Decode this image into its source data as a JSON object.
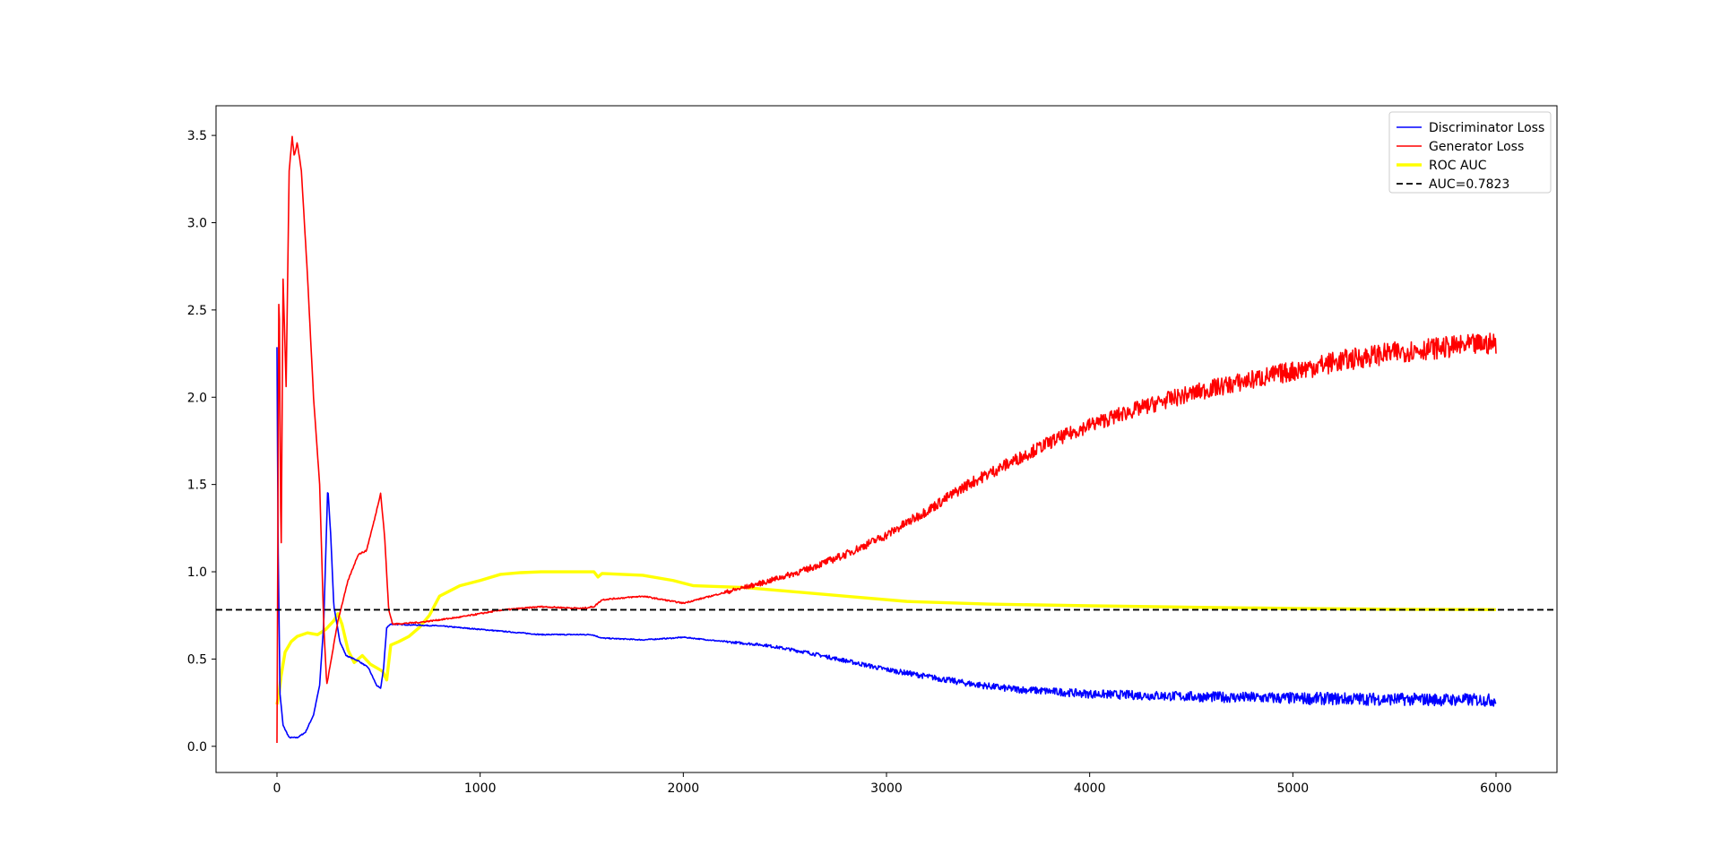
{
  "chart_data": {
    "type": "line",
    "title": "",
    "xlabel": "",
    "ylabel": "",
    "xlim": [
      -300,
      6300
    ],
    "ylim": [
      -0.15,
      3.67
    ],
    "x_ticks": [
      0,
      1000,
      2000,
      3000,
      4000,
      5000,
      6000
    ],
    "y_ticks": [
      0.0,
      0.5,
      1.0,
      1.5,
      2.0,
      2.5,
      3.0,
      3.5
    ],
    "x_tick_labels": [
      "0",
      "1000",
      "2000",
      "3000",
      "4000",
      "5000",
      "6000"
    ],
    "y_tick_labels": [
      "0.0",
      "0.5",
      "1.0",
      "1.5",
      "2.0",
      "2.5",
      "3.0",
      "3.5"
    ],
    "grid": false,
    "legend_position": "top-right",
    "series": [
      {
        "name": "Discriminator Loss",
        "color": "#0000ff",
        "style": "solid",
        "noisy": true,
        "points": [
          [
            0,
            2.29
          ],
          [
            5,
            1.2
          ],
          [
            15,
            0.3
          ],
          [
            30,
            0.12
          ],
          [
            60,
            0.05
          ],
          [
            100,
            0.05
          ],
          [
            140,
            0.08
          ],
          [
            180,
            0.18
          ],
          [
            210,
            0.35
          ],
          [
            230,
            0.7
          ],
          [
            250,
            1.49
          ],
          [
            265,
            1.2
          ],
          [
            280,
            0.8
          ],
          [
            310,
            0.6
          ],
          [
            340,
            0.52
          ],
          [
            400,
            0.49
          ],
          [
            450,
            0.45
          ],
          [
            490,
            0.35
          ],
          [
            510,
            0.33
          ],
          [
            525,
            0.45
          ],
          [
            540,
            0.68
          ],
          [
            560,
            0.7
          ],
          [
            800,
            0.69
          ],
          [
            1000,
            0.67
          ],
          [
            1300,
            0.64
          ],
          [
            1550,
            0.64
          ],
          [
            1600,
            0.62
          ],
          [
            1800,
            0.61
          ],
          [
            1950,
            0.62
          ],
          [
            2000,
            0.625
          ],
          [
            2200,
            0.6
          ],
          [
            2400,
            0.58
          ],
          [
            2600,
            0.54
          ],
          [
            2800,
            0.49
          ],
          [
            3000,
            0.44
          ],
          [
            3200,
            0.4
          ],
          [
            3400,
            0.36
          ],
          [
            3600,
            0.33
          ],
          [
            3800,
            0.315
          ],
          [
            4000,
            0.3
          ],
          [
            4500,
            0.285
          ],
          [
            5000,
            0.275
          ],
          [
            5500,
            0.27
          ],
          [
            6000,
            0.265
          ]
        ]
      },
      {
        "name": "Generator Loss",
        "color": "#ff0000",
        "style": "solid",
        "noisy": true,
        "points": [
          [
            0,
            0.02
          ],
          [
            10,
            2.81
          ],
          [
            20,
            1.0
          ],
          [
            30,
            2.68
          ],
          [
            45,
            2.06
          ],
          [
            60,
            3.3
          ],
          [
            75,
            3.49
          ],
          [
            85,
            3.38
          ],
          [
            100,
            3.46
          ],
          [
            120,
            3.3
          ],
          [
            150,
            2.7
          ],
          [
            180,
            2.0
          ],
          [
            210,
            1.5
          ],
          [
            230,
            0.7
          ],
          [
            245,
            0.35
          ],
          [
            260,
            0.45
          ],
          [
            300,
            0.72
          ],
          [
            350,
            0.95
          ],
          [
            400,
            1.1
          ],
          [
            440,
            1.12
          ],
          [
            480,
            1.3
          ],
          [
            510,
            1.45
          ],
          [
            530,
            1.2
          ],
          [
            550,
            0.78
          ],
          [
            570,
            0.7
          ],
          [
            700,
            0.71
          ],
          [
            900,
            0.74
          ],
          [
            1100,
            0.78
          ],
          [
            1300,
            0.8
          ],
          [
            1500,
            0.79
          ],
          [
            1560,
            0.8
          ],
          [
            1600,
            0.84
          ],
          [
            1800,
            0.86
          ],
          [
            2000,
            0.82
          ],
          [
            2200,
            0.88
          ],
          [
            2400,
            0.94
          ],
          [
            2600,
            1.01
          ],
          [
            2800,
            1.1
          ],
          [
            3000,
            1.21
          ],
          [
            3200,
            1.35
          ],
          [
            3400,
            1.5
          ],
          [
            3600,
            1.62
          ],
          [
            3800,
            1.74
          ],
          [
            4000,
            1.84
          ],
          [
            4200,
            1.92
          ],
          [
            4400,
            1.99
          ],
          [
            4600,
            2.05
          ],
          [
            4800,
            2.1
          ],
          [
            5000,
            2.15
          ],
          [
            5200,
            2.2
          ],
          [
            5400,
            2.24
          ],
          [
            5600,
            2.27
          ],
          [
            5800,
            2.29
          ],
          [
            6000,
            2.31
          ]
        ]
      },
      {
        "name": "ROC AUC",
        "color": "#ffff00",
        "style": "thick",
        "noisy": false,
        "points": [
          [
            0,
            0.24
          ],
          [
            10,
            0.3
          ],
          [
            20,
            0.4
          ],
          [
            40,
            0.54
          ],
          [
            70,
            0.6
          ],
          [
            100,
            0.63
          ],
          [
            150,
            0.65
          ],
          [
            200,
            0.64
          ],
          [
            240,
            0.67
          ],
          [
            280,
            0.72
          ],
          [
            300,
            0.76
          ],
          [
            320,
            0.7
          ],
          [
            350,
            0.55
          ],
          [
            380,
            0.48
          ],
          [
            420,
            0.52
          ],
          [
            460,
            0.47
          ],
          [
            520,
            0.43
          ],
          [
            540,
            0.38
          ],
          [
            560,
            0.58
          ],
          [
            600,
            0.6
          ],
          [
            650,
            0.63
          ],
          [
            700,
            0.68
          ],
          [
            750,
            0.75
          ],
          [
            800,
            0.86
          ],
          [
            900,
            0.92
          ],
          [
            1000,
            0.95
          ],
          [
            1100,
            0.985
          ],
          [
            1200,
            0.995
          ],
          [
            1300,
            1.0
          ],
          [
            1400,
            1.0
          ],
          [
            1560,
            1.0
          ],
          [
            1580,
            0.97
          ],
          [
            1600,
            0.99
          ],
          [
            1800,
            0.98
          ],
          [
            1950,
            0.95
          ],
          [
            2050,
            0.92
          ],
          [
            2300,
            0.91
          ],
          [
            2500,
            0.89
          ],
          [
            2800,
            0.86
          ],
          [
            3100,
            0.83
          ],
          [
            3500,
            0.815
          ],
          [
            4000,
            0.805
          ],
          [
            4500,
            0.797
          ],
          [
            5000,
            0.79
          ],
          [
            5500,
            0.785
          ],
          [
            6000,
            0.783
          ]
        ]
      },
      {
        "name": "AUC=0.7823",
        "color": "#000000",
        "style": "dashed",
        "type": "hline",
        "y": 0.7823
      }
    ]
  }
}
